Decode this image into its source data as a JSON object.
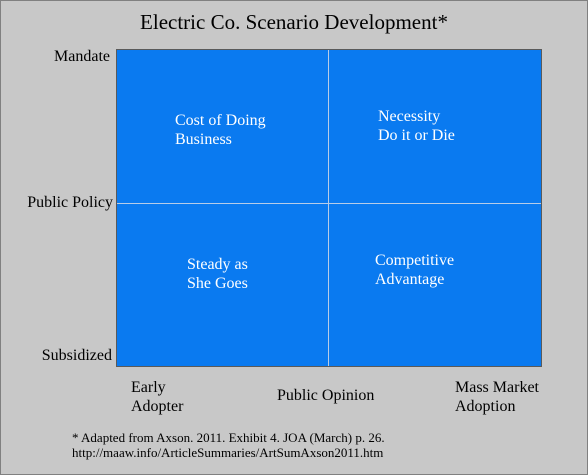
{
  "title": "Electric Co. Scenario Development*",
  "y_axis": {
    "top": "Mandate",
    "middle": "Public Policy",
    "bottom": "Subsidized"
  },
  "x_axis": {
    "left": [
      "Early",
      "Adopter"
    ],
    "middle": "Public Opinion",
    "right": [
      "Mass Market",
      "Adoption"
    ]
  },
  "quadrants": {
    "top_left": [
      "Cost of Doing",
      "Business"
    ],
    "top_right": [
      "Necessity",
      "Do it or Die"
    ],
    "bottom_left": [
      "Steady as",
      "She Goes"
    ],
    "bottom_right": [
      "Competitive",
      "Advantage"
    ]
  },
  "footnote": [
    "* Adapted from Axson. 2011. Exhibit 4. JOA (March) p. 26.",
    "http://maaw.info/ArticleSummaries/ArtSumAxson2011.htm"
  ],
  "colors": {
    "matrix_fill": "#0a7af0",
    "background": "#c8c8c8",
    "quadrant_text": "#ffffff"
  }
}
